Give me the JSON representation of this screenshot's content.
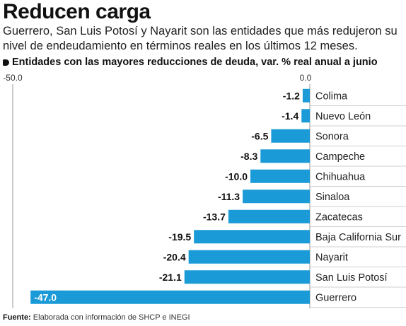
{
  "header": {
    "title": "Reducen carga",
    "subtitle": "Guerrero, San Luis Potosí y Nayarit son las entidades que más redujeron su nivel de endeudamiento en términos reales en los últimos 12 meses."
  },
  "footer": {
    "label": "Fuente:",
    "text": "Elaborada con información de SHCP e INEGI"
  },
  "chart_data": {
    "type": "bar",
    "orientation": "horizontal",
    "title": "Entidades con las mayores reducciones de deuda, var. % real anual a junio",
    "xlim": [
      -50.0,
      0.0
    ],
    "tick_labels": [
      "-50.0",
      "0.0"
    ],
    "grid": false,
    "bar_color": "#1a9ad6",
    "categories": [
      "Colima",
      "Nuevo León",
      "Sonora",
      "Campeche",
      "Chihuahua",
      "Sinaloa",
      "Zacatecas",
      "Baja California Sur",
      "Nayarit",
      "San Luis Potosí",
      "Guerrero"
    ],
    "values": [
      -1.2,
      -1.4,
      -6.5,
      -8.3,
      -10.0,
      -11.3,
      -13.7,
      -19.5,
      -20.4,
      -21.1,
      -47.0
    ],
    "value_labels": [
      "-1.2",
      "-1.4",
      "-6.5",
      "-8.3",
      "-10.0",
      "-11.3",
      "-13.7",
      "-19.5",
      "-20.4",
      "-21.1",
      "-47.0"
    ]
  }
}
